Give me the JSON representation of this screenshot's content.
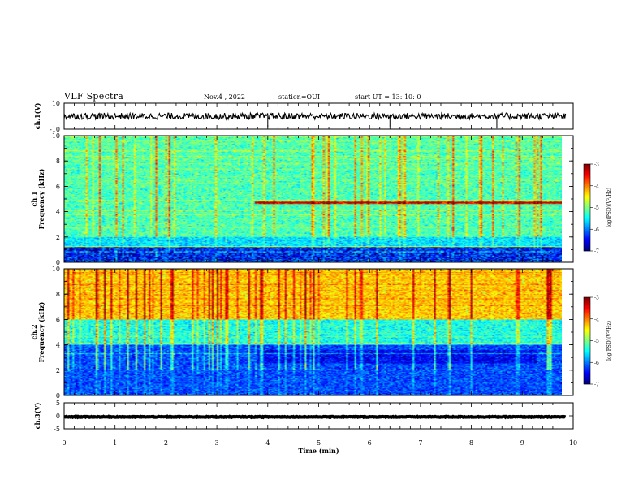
{
  "header": {
    "title": "VLF Spectra",
    "date": "Nov.4 , 2022",
    "station": "station=OUI",
    "start": "start UT = 13: 10: 0"
  },
  "chart_data": [
    {
      "type": "line",
      "panel": "ch1-waveform",
      "ylabel": "ch.1(V)",
      "ylim": [
        -10,
        10
      ],
      "yticks": [
        "10",
        "-10"
      ],
      "xlim": [
        0,
        10
      ],
      "series": [
        {
          "mean": 0,
          "amplitude": 2.5
        }
      ]
    },
    {
      "type": "heatmap",
      "panel": "ch1-spectrogram",
      "ylabel": "ch.1\nFrequency (kHz)",
      "ylabel_lines": [
        "ch.1",
        "Frequency (kHz)"
      ],
      "xlim": [
        0,
        9.85
      ],
      "ylim": [
        0,
        10
      ],
      "yticks": [
        "0",
        "2",
        "4",
        "6",
        "8",
        "10"
      ],
      "colorbar": {
        "label": "log(PSD)(V²/Hz)",
        "min": -7,
        "max": -3,
        "ticks": [
          "-3",
          "-4",
          "-5",
          "-6",
          "-7"
        ]
      },
      "bands": [
        {
          "from_khz": 0,
          "to_khz": 1.2,
          "level": -6.6
        },
        {
          "from_khz": 1.2,
          "to_khz": 2.0,
          "level": -5.6
        },
        {
          "from_khz": 2.0,
          "to_khz": 10,
          "level": -5.2
        }
      ],
      "lines_khz": [
        4.7
      ]
    },
    {
      "type": "heatmap",
      "panel": "ch2-spectrogram",
      "ylabel": "ch.2\nFrequency (kHz)",
      "ylabel_lines": [
        "ch.2",
        "Frequency (kHz)"
      ],
      "xlim": [
        0,
        9.85
      ],
      "ylim": [
        0,
        10
      ],
      "yticks": [
        "0",
        "2",
        "4",
        "6",
        "8",
        "10"
      ],
      "colorbar": {
        "label": "log(PSD)(V²/Hz)",
        "min": -7,
        "max": -3,
        "ticks": [
          "-3",
          "-4",
          "-5",
          "-6",
          "-7"
        ]
      },
      "bands": [
        {
          "from_khz": 0,
          "to_khz": 4.0,
          "level": -6.2
        },
        {
          "from_khz": 4.0,
          "to_khz": 6.0,
          "level": -5.4
        },
        {
          "from_khz": 6.0,
          "to_khz": 10,
          "level": -4.3
        }
      ]
    },
    {
      "type": "line",
      "panel": "ch3-waveform",
      "ylabel": "ch.3(V)",
      "ylim": [
        -5,
        5
      ],
      "yticks": [
        "5",
        "0",
        "-5"
      ],
      "xlim": [
        0,
        10
      ],
      "series": [
        {
          "mean": -0.4,
          "amplitude": 0.3
        }
      ]
    }
  ],
  "axis": {
    "xlabel": "Time (min)",
    "xticks": [
      "0",
      "1",
      "2",
      "3",
      "4",
      "5",
      "6",
      "7",
      "8",
      "9",
      "10"
    ]
  }
}
